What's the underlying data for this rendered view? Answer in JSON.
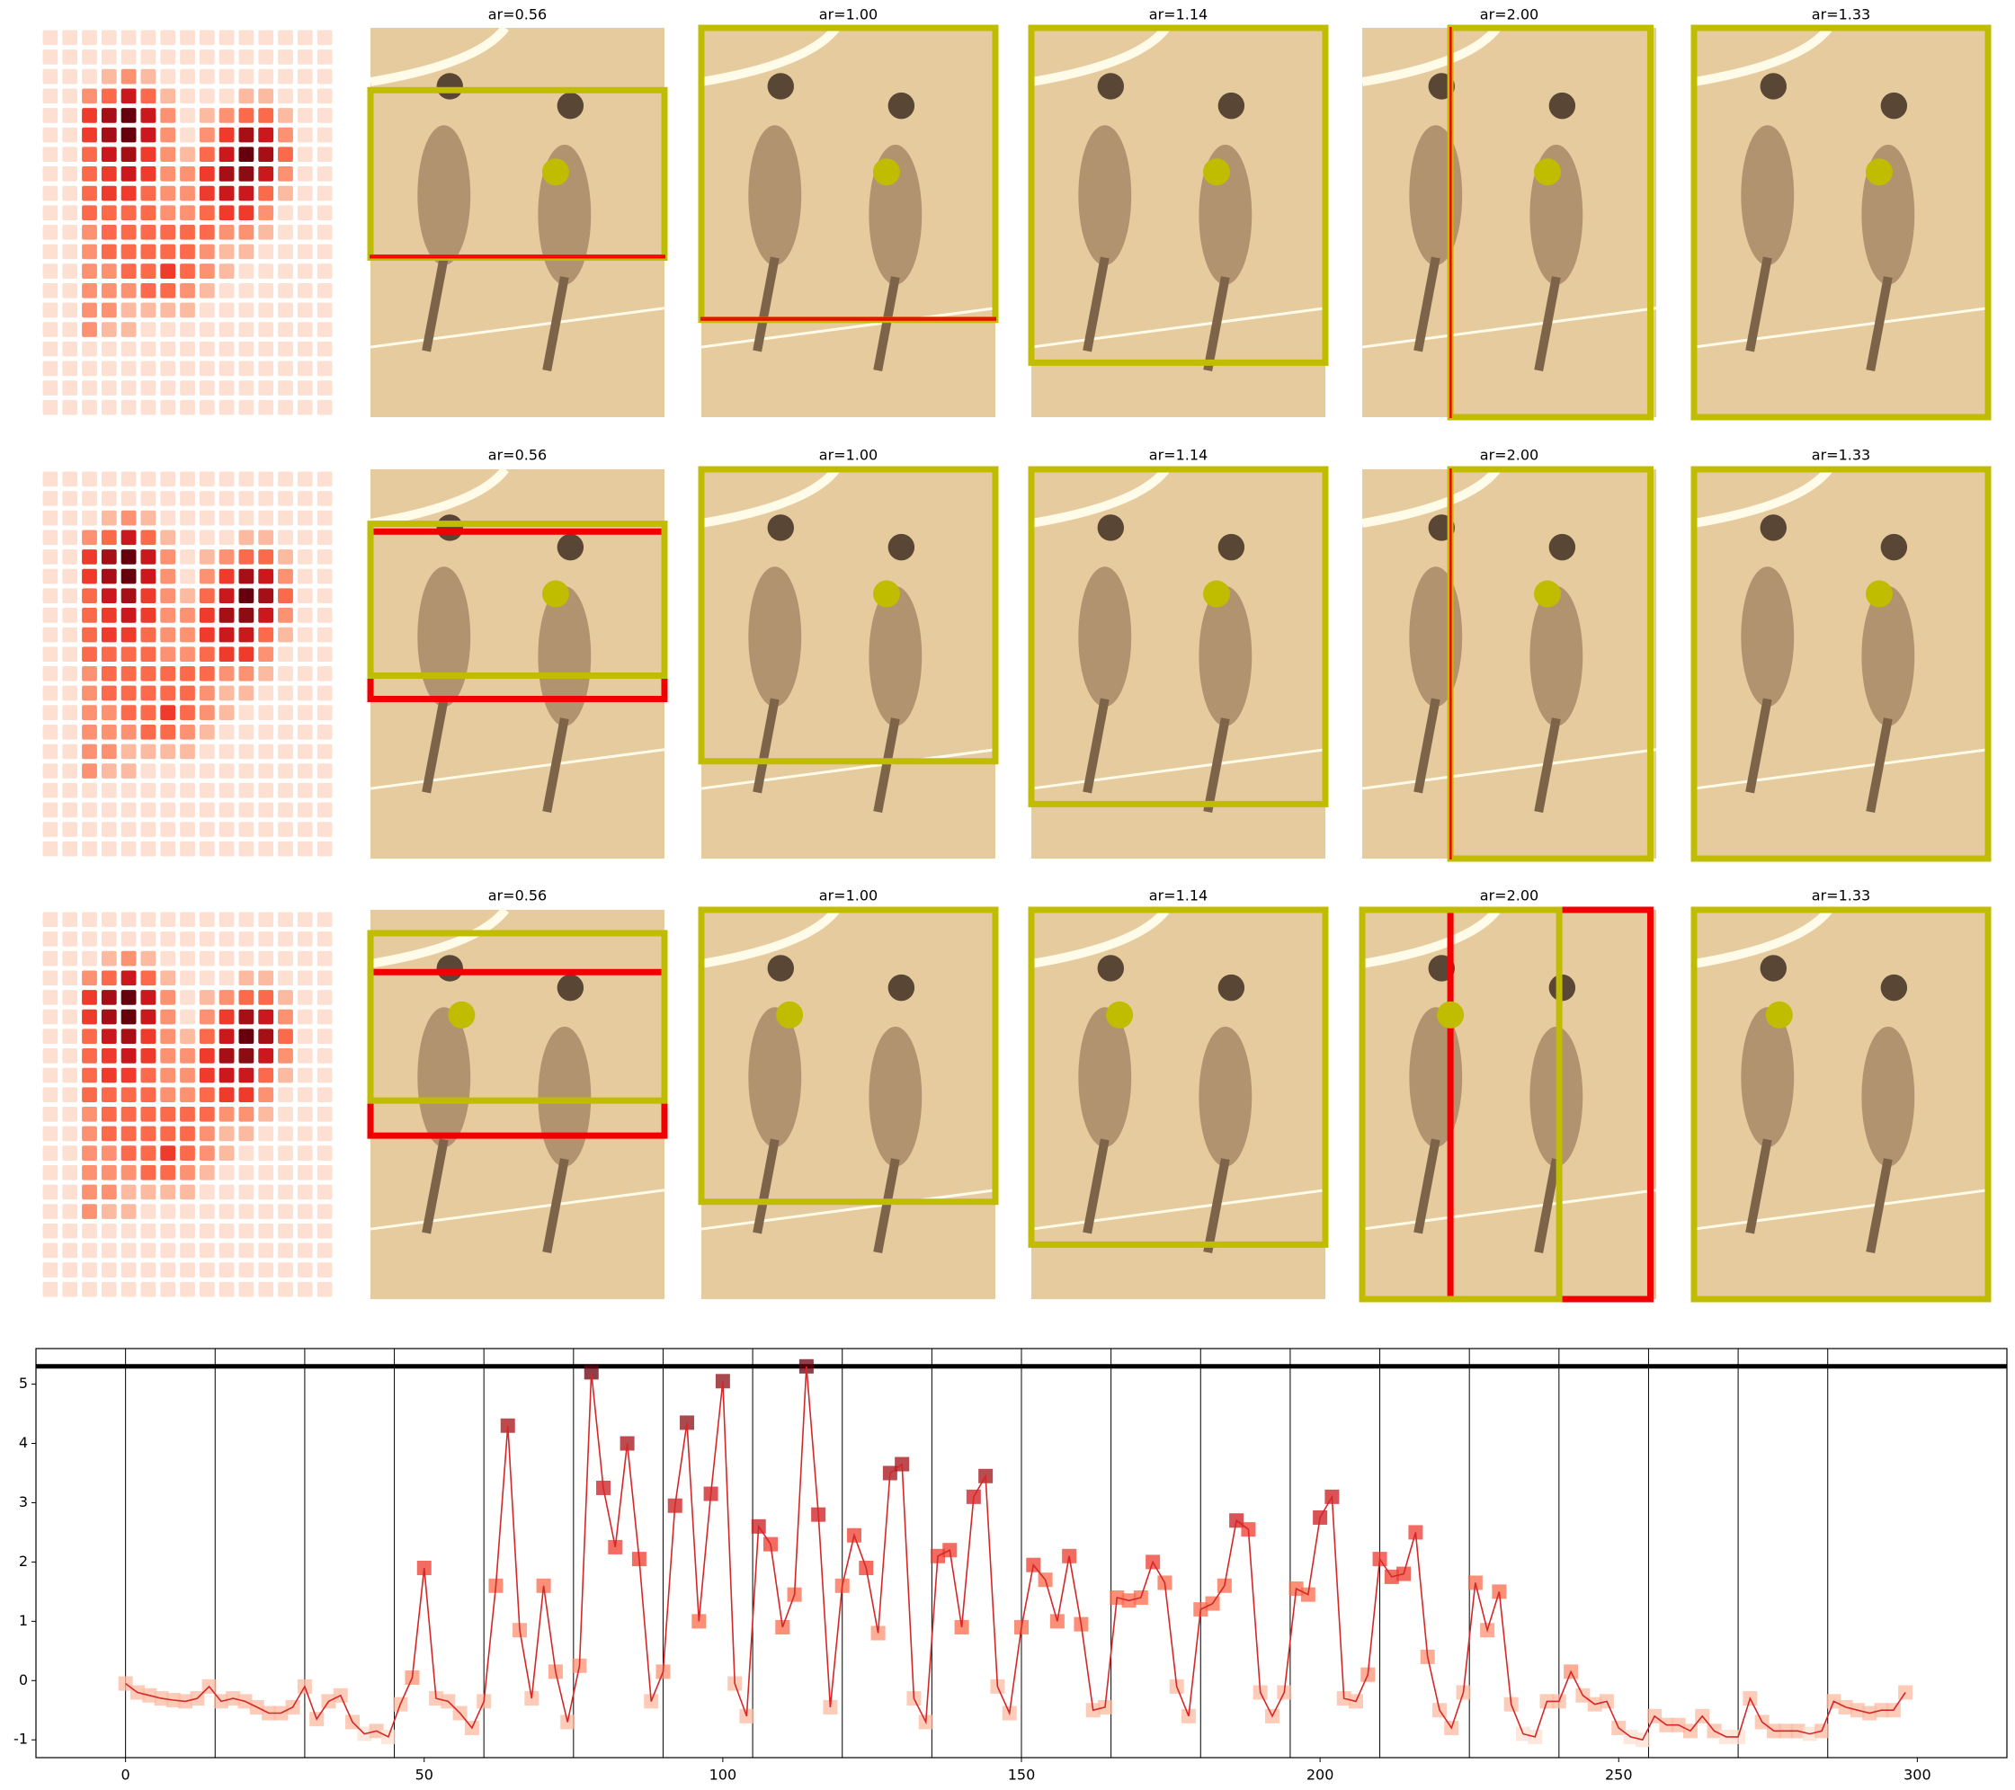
{
  "panel_titles": [
    "ar=0.56",
    "ar=1.00",
    "ar=1.14",
    "ar=2.00",
    "ar=1.33"
  ],
  "chart_data": [
    {
      "type": "heatmap",
      "colormap": [
        "#fff5f0",
        "#fee0d2",
        "#fcbba1",
        "#fc9272",
        "#fb6a4a",
        "#ef3b2c",
        "#cb181d",
        "#a50f15",
        "#8b0d13",
        "#67000d"
      ],
      "grid": [
        [
          1,
          1,
          1,
          1,
          1,
          1,
          1,
          1,
          1,
          1,
          1,
          1,
          1,
          1,
          1
        ],
        [
          1,
          1,
          1,
          1,
          1,
          1,
          1,
          1,
          1,
          1,
          1,
          1,
          1,
          1,
          1
        ],
        [
          1,
          1,
          1,
          2,
          3,
          2,
          1,
          1,
          1,
          1,
          1,
          1,
          1,
          1,
          1
        ],
        [
          1,
          1,
          3,
          4,
          6,
          4,
          2,
          1,
          1,
          1,
          2,
          2,
          1,
          1,
          1
        ],
        [
          1,
          1,
          5,
          7,
          9,
          6,
          3,
          1,
          2,
          3,
          4,
          4,
          2,
          1,
          1
        ],
        [
          1,
          1,
          5,
          7,
          9,
          6,
          3,
          1,
          3,
          5,
          7,
          6,
          3,
          1,
          1
        ],
        [
          1,
          1,
          4,
          6,
          7,
          5,
          3,
          2,
          4,
          6,
          9,
          7,
          4,
          1,
          1
        ],
        [
          1,
          1,
          4,
          5,
          6,
          5,
          3,
          3,
          5,
          7,
          8,
          6,
          3,
          1,
          1
        ],
        [
          1,
          1,
          4,
          5,
          5,
          4,
          3,
          3,
          5,
          6,
          6,
          4,
          2,
          1,
          1
        ],
        [
          1,
          1,
          4,
          4,
          4,
          4,
          3,
          3,
          4,
          5,
          5,
          3,
          1,
          1,
          1
        ],
        [
          1,
          1,
          3,
          4,
          4,
          4,
          4,
          4,
          4,
          3,
          3,
          2,
          1,
          1,
          1
        ],
        [
          1,
          1,
          3,
          4,
          4,
          4,
          4,
          4,
          3,
          2,
          2,
          1,
          1,
          1,
          1
        ],
        [
          1,
          1,
          3,
          3,
          4,
          4,
          5,
          4,
          3,
          2,
          1,
          1,
          1,
          1,
          1
        ],
        [
          1,
          1,
          3,
          3,
          3,
          4,
          4,
          3,
          2,
          1,
          1,
          1,
          1,
          1,
          1
        ],
        [
          1,
          1,
          3,
          3,
          2,
          2,
          2,
          2,
          1,
          1,
          1,
          1,
          1,
          1,
          1
        ],
        [
          1,
          1,
          3,
          2,
          2,
          1,
          1,
          1,
          1,
          1,
          1,
          1,
          1,
          1,
          1
        ],
        [
          1,
          1,
          1,
          1,
          1,
          1,
          1,
          1,
          1,
          1,
          1,
          1,
          1,
          1,
          1
        ],
        [
          1,
          1,
          1,
          1,
          1,
          1,
          1,
          1,
          1,
          1,
          1,
          1,
          1,
          1,
          1
        ],
        [
          1,
          1,
          1,
          1,
          1,
          1,
          1,
          1,
          1,
          1,
          1,
          1,
          1,
          1,
          1
        ],
        [
          1,
          1,
          1,
          1,
          1,
          1,
          1,
          1,
          1,
          1,
          1,
          1,
          1,
          1,
          1
        ]
      ]
    },
    {
      "type": "line",
      "color": "#d62728",
      "xlim": [
        -15,
        315
      ],
      "ylim": [
        -1.3,
        5.6
      ],
      "xticks": [
        0,
        50,
        100,
        150,
        200,
        250,
        300
      ],
      "yticks": [
        -1,
        0,
        1,
        2,
        3,
        4,
        5
      ],
      "vlines": [
        0,
        15,
        30,
        45,
        60,
        75,
        90,
        105,
        120,
        135,
        150,
        165,
        180,
        195,
        210,
        225,
        240,
        255,
        270,
        285
      ],
      "hline": 5.3,
      "x": [
        0,
        2,
        4,
        6,
        8,
        10,
        12,
        14,
        16,
        18,
        20,
        22,
        24,
        26,
        28,
        30,
        32,
        34,
        36,
        38,
        40,
        42,
        44,
        46,
        48,
        50,
        52,
        54,
        56,
        58,
        60,
        62,
        64,
        66,
        68,
        70,
        72,
        74,
        76,
        78,
        80,
        82,
        84,
        86,
        88,
        90,
        92,
        94,
        96,
        98,
        100,
        102,
        104,
        106,
        108,
        110,
        112,
        114,
        116,
        118,
        120,
        122,
        124,
        126,
        128,
        130,
        132,
        134,
        136,
        138,
        140,
        142,
        144,
        146,
        148,
        150,
        152,
        154,
        156,
        158,
        160,
        162,
        164,
        166,
        168,
        170,
        172,
        174,
        176,
        178,
        180,
        182,
        184,
        186,
        188,
        190,
        192,
        194,
        196,
        198,
        200,
        202,
        204,
        206,
        208,
        210,
        212,
        214,
        216,
        218,
        220,
        222,
        224,
        226,
        228,
        230,
        232,
        234,
        236,
        238,
        240,
        242,
        244,
        246,
        248,
        250,
        252,
        254,
        256,
        258,
        260,
        262,
        264,
        266,
        268,
        270,
        272,
        274,
        276,
        278,
        280,
        282,
        284,
        286,
        288,
        290,
        292,
        294,
        296,
        298
      ],
      "values": [
        -0.05,
        -0.2,
        -0.25,
        -0.3,
        -0.33,
        -0.35,
        -0.3,
        -0.1,
        -0.35,
        -0.3,
        -0.35,
        -0.45,
        -0.55,
        -0.55,
        -0.45,
        -0.1,
        -0.65,
        -0.35,
        -0.25,
        -0.7,
        -0.9,
        -0.85,
        -0.95,
        -0.4,
        0.05,
        1.9,
        -0.3,
        -0.35,
        -0.55,
        -0.8,
        -0.35,
        1.6,
        4.3,
        0.85,
        -0.3,
        1.6,
        0.15,
        -0.7,
        0.25,
        5.2,
        3.25,
        2.25,
        4.0,
        2.05,
        -0.35,
        0.15,
        2.95,
        4.35,
        1.0,
        3.15,
        5.05,
        -0.05,
        -0.6,
        2.6,
        2.3,
        0.9,
        1.45,
        5.3,
        2.8,
        -0.45,
        1.6,
        2.45,
        1.9,
        0.8,
        3.5,
        3.65,
        -0.3,
        -0.7,
        2.1,
        2.2,
        0.9,
        3.1,
        3.45,
        -0.1,
        -0.55,
        0.9,
        1.95,
        1.7,
        1.0,
        2.1,
        0.95,
        -0.5,
        -0.45,
        1.4,
        1.35,
        1.4,
        2.0,
        1.65,
        -0.1,
        -0.6,
        1.2,
        1.3,
        1.6,
        2.7,
        2.55,
        -0.2,
        -0.6,
        -0.2,
        1.55,
        1.45,
        2.75,
        3.1,
        -0.3,
        -0.35,
        0.1,
        2.05,
        1.75,
        1.8,
        2.5,
        0.4,
        -0.5,
        -0.8,
        -0.2,
        1.65,
        0.85,
        1.5,
        -0.4,
        -0.9,
        -0.95,
        -0.35,
        -0.35,
        0.15,
        -0.25,
        -0.4,
        -0.35,
        -0.8,
        -0.95,
        -1.0,
        -0.6,
        -0.75,
        -0.75,
        -0.85,
        -0.6,
        -0.85,
        -0.95,
        -0.95,
        -0.3,
        -0.7,
        -0.85,
        -0.85,
        -0.85,
        -0.9,
        -0.85,
        -0.35,
        -0.45,
        -0.5,
        -0.55,
        -0.5,
        -0.5,
        -0.2
      ]
    }
  ]
}
